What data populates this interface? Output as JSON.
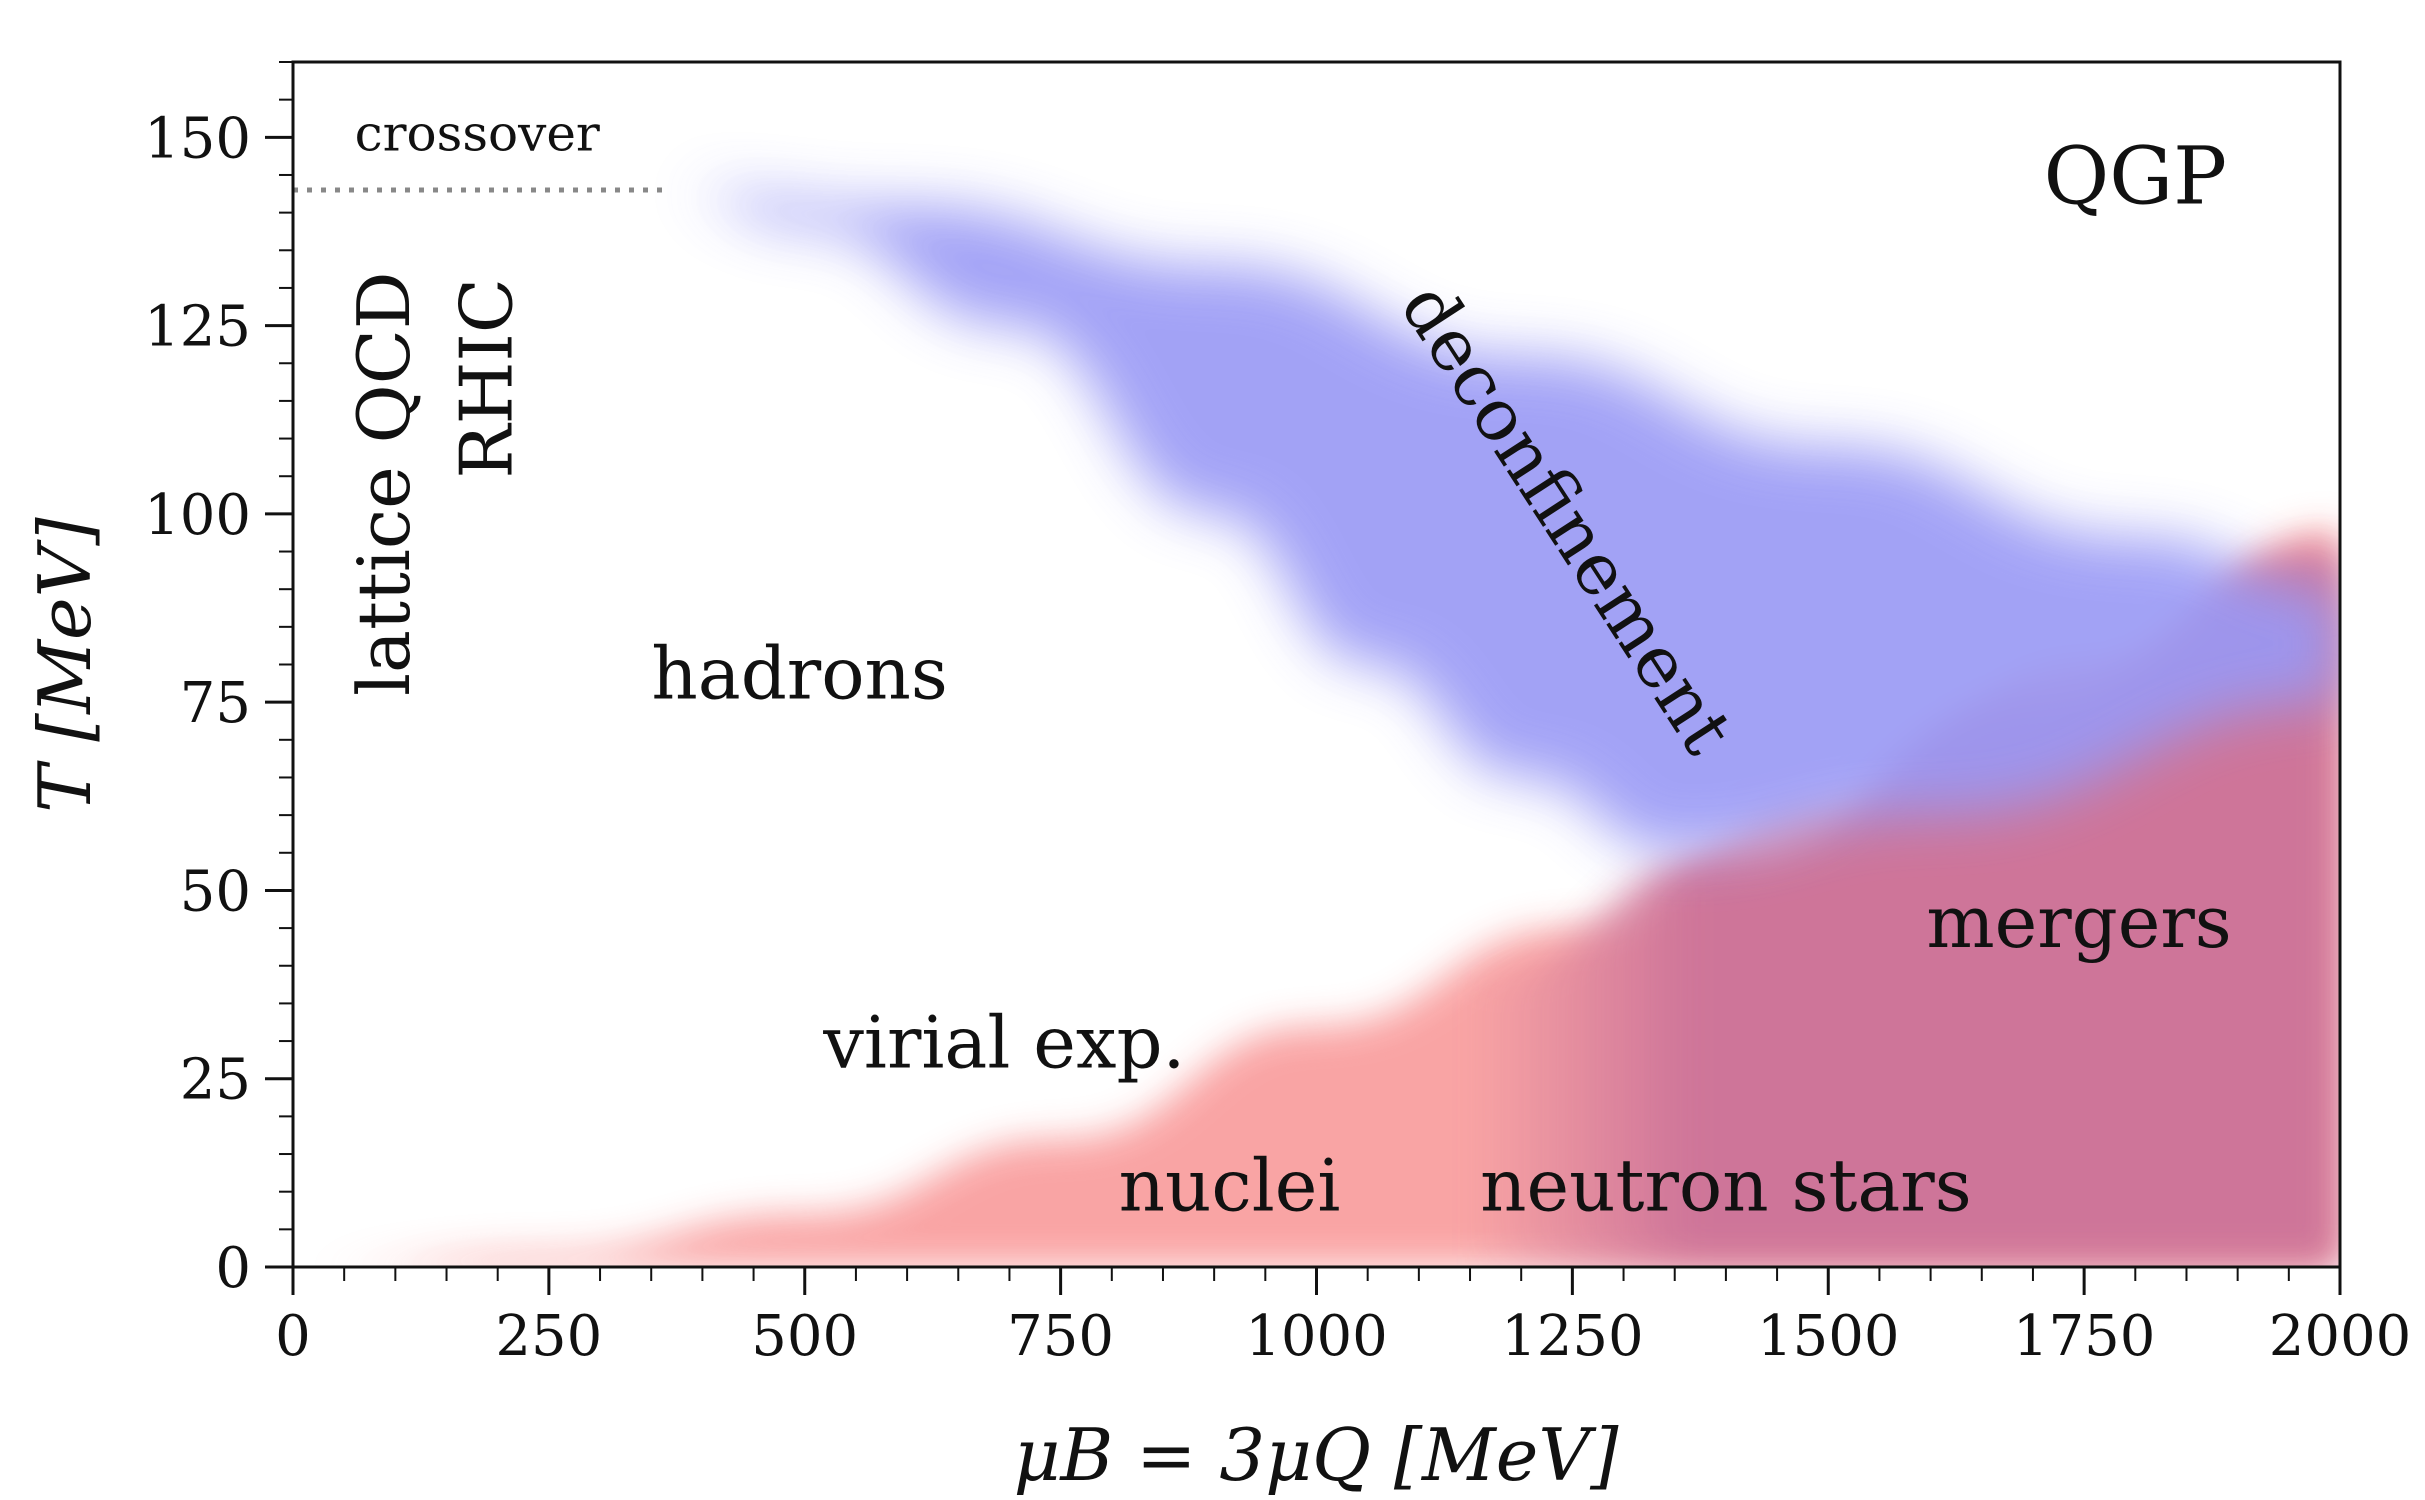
{
  "chart_data": {
    "type": "area",
    "xlabel": "μB = 3μQ [MeV]",
    "ylabel": "T [MeV]",
    "xlim": [
      0,
      2000
    ],
    "ylim": [
      0,
      160
    ],
    "xticks": [
      0,
      250,
      500,
      750,
      1000,
      1250,
      1500,
      1750,
      2000
    ],
    "yticks": [
      0,
      25,
      50,
      75,
      100,
      125,
      150
    ],
    "grid": false,
    "legend": "none",
    "crossover_line": {
      "x": [
        0,
        367
      ],
      "y": [
        143,
        143
      ],
      "style": "dotted",
      "color": "#888888"
    },
    "deconfinement_band": {
      "color": "#9999f5",
      "upper": {
        "x": [
          367,
          600,
          900,
          1200,
          1500,
          1800,
          2000
        ],
        "y": [
          143,
          141,
          133,
          121,
          109,
          97,
          90
        ]
      },
      "lower": {
        "x": [
          367,
          500,
          700,
          900,
          1050,
          1200,
          1350
        ],
        "y": [
          143,
          138,
          125,
          100,
          80,
          65,
          55
        ]
      }
    },
    "nuclei_band": {
      "color": "#f9a0a0",
      "upper": {
        "x": [
          0,
          250,
          500,
          750,
          1000,
          1250,
          1500,
          1750,
          2000
        ],
        "y": [
          0,
          2,
          7,
          17,
          32,
          45,
          62,
          80,
          98
        ]
      },
      "lower": {
        "x": [
          0,
          2000
        ],
        "y": [
          0,
          0
        ]
      }
    },
    "neutron_star_region": {
      "color": "#cc7399",
      "upper": {
        "x": [
          1150,
          1400,
          1700,
          2000
        ],
        "y": [
          38,
          55,
          75,
          95
        ]
      },
      "lower": {
        "x": [
          1150,
          2000
        ],
        "y": [
          0,
          0
        ]
      }
    },
    "annotations": [
      {
        "text": "crossover",
        "x": 180,
        "y": 150,
        "color": "#111111"
      },
      {
        "text": "QGP",
        "x": 1800,
        "y": 144,
        "color": "#111111"
      },
      {
        "text": "lattice QCD",
        "x": 95,
        "y": 104,
        "color": "#111111",
        "rotation": -90
      },
      {
        "text": "RHIC",
        "x": 195,
        "y": 118,
        "color": "#111111",
        "rotation": -90
      },
      {
        "text": "hadrons",
        "x": 495,
        "y": 78,
        "color": "#111111"
      },
      {
        "text": "deconfinement",
        "x": 1240,
        "y": 99,
        "color": "#1a1a99",
        "rotation": 57
      },
      {
        "text": "virial exp.",
        "x": 695,
        "y": 29,
        "color": "#111111"
      },
      {
        "text": "mergers",
        "x": 1745,
        "y": 45,
        "color": "#8b0a15"
      },
      {
        "text": "nuclei",
        "x": 915,
        "y": 10,
        "color": "#111111"
      },
      {
        "text": "neutron stars",
        "x": 1400,
        "y": 10,
        "color": "#111111"
      }
    ]
  }
}
